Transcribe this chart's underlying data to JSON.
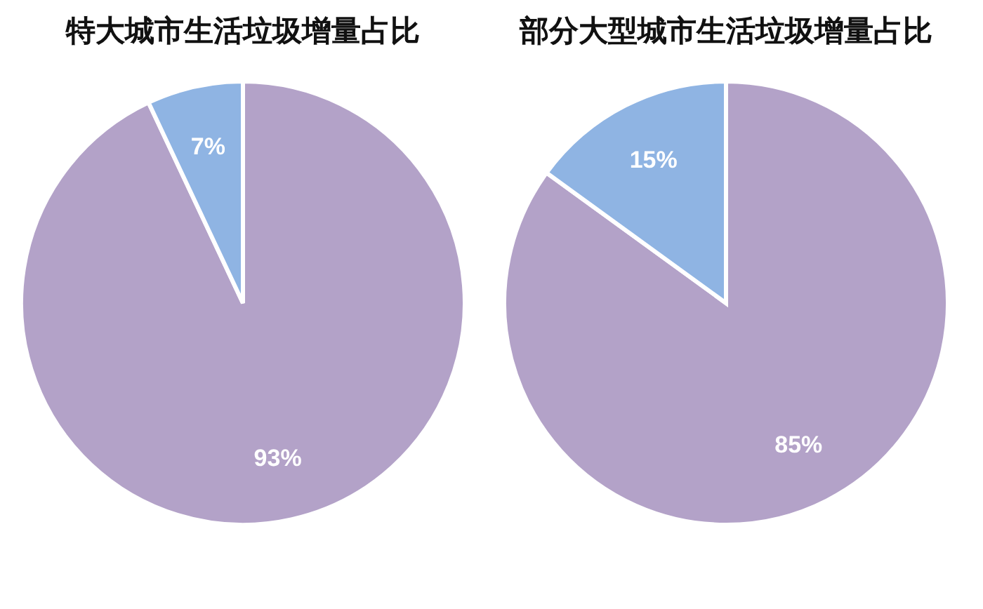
{
  "chart_data": [
    {
      "type": "pie",
      "title": "特大城市生活垃圾增量占比",
      "categories": [
        null,
        null
      ],
      "values": [
        93,
        7
      ],
      "value_labels": [
        "93%",
        "7%"
      ],
      "colors": [
        "#b3a2c8",
        "#8fb4e3"
      ],
      "legend": false
    },
    {
      "type": "pie",
      "title": "部分大型城市生活垃圾增量占比",
      "categories": [
        null,
        null
      ],
      "values": [
        85,
        15
      ],
      "value_labels": [
        "85%",
        "15%"
      ],
      "colors": [
        "#b3a2c8",
        "#8fb4e3"
      ],
      "legend": false
    }
  ]
}
